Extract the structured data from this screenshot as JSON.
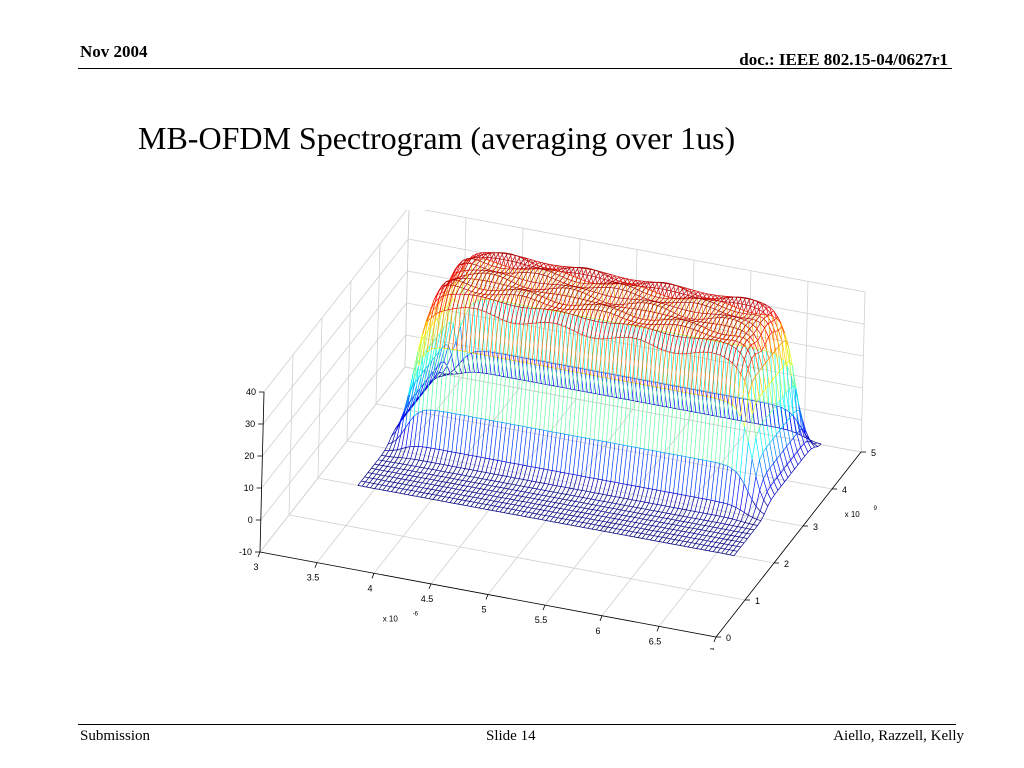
{
  "header": {
    "date": "Nov 2004",
    "doc": "doc.: IEEE 802.15-04/0627r1"
  },
  "title": "MB-OFDM Spectrogram (averaging over 1us)",
  "footer": {
    "left": "Submission",
    "center": "Slide 14",
    "right": "Aiello, Razzell, Kelly"
  },
  "chart_data": {
    "type": "surface",
    "title": "",
    "x_axis": {
      "label": "",
      "exponent_label": "x 10",
      "exponent": "-6",
      "ticks": [
        "3",
        "3.5",
        "4",
        "4.5",
        "5",
        "5.5",
        "6",
        "6.5",
        "7"
      ],
      "range": [
        3,
        7
      ]
    },
    "y_axis": {
      "label": "",
      "exponent_label": "x 10",
      "exponent": "9",
      "ticks": [
        "0",
        "1",
        "2",
        "3",
        "4",
        "5"
      ],
      "range": [
        0,
        5
      ]
    },
    "z_axis": {
      "label": "",
      "ticks": [
        "-10",
        "0",
        "10",
        "20",
        "30",
        "40"
      ],
      "range": [
        -10,
        40
      ]
    },
    "grid": true,
    "colormap": "jet",
    "surface": {
      "time_range": [
        3.5,
        6.5
      ],
      "band_freq_range": [
        3.1,
        4.8
      ],
      "plateau_level": 38,
      "floor_level": -10
    },
    "colors": {
      "low": "#0000c0",
      "mid": "#00ffff",
      "high": "#d00000",
      "grid": "#d0d0d0"
    }
  }
}
